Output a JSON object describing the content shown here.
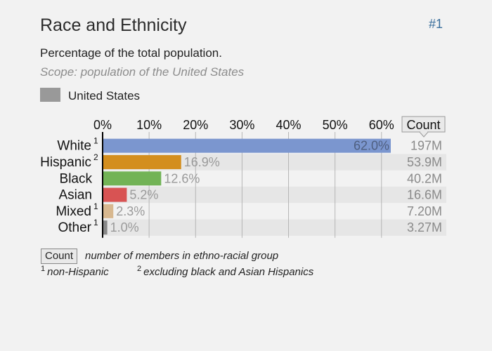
{
  "header": {
    "title": "Race and Ethnicity",
    "rank": "#1",
    "subtitle": "Percentage of the total population.",
    "scope": "Scope: population of the United States"
  },
  "legend": {
    "label": "United States",
    "color": "#999999"
  },
  "chart_data": {
    "type": "bar",
    "orientation": "horizontal",
    "xlim": [
      0,
      62
    ],
    "ticks": [
      {
        "value": 0,
        "label": "0%"
      },
      {
        "value": 10,
        "label": "10%"
      },
      {
        "value": 20,
        "label": "20%"
      },
      {
        "value": 30,
        "label": "30%"
      },
      {
        "value": 40,
        "label": "40%"
      },
      {
        "value": 50,
        "label": "50%"
      },
      {
        "value": 60,
        "label": "60%"
      }
    ],
    "count_header": "Count",
    "categories": [
      {
        "name": "White",
        "sup": "1",
        "value": 62.0,
        "label": "62.0%",
        "count": "197M",
        "color": "#7b96cf"
      },
      {
        "name": "Hispanic",
        "sup": "2",
        "value": 16.9,
        "label": "16.9%",
        "count": "53.9M",
        "color": "#d38e1e"
      },
      {
        "name": "Black",
        "sup": "",
        "value": 12.6,
        "label": "12.6%",
        "count": "40.2M",
        "color": "#72b356"
      },
      {
        "name": "Asian",
        "sup": "",
        "value": 5.2,
        "label": "5.2%",
        "count": "16.6M",
        "color": "#d85353"
      },
      {
        "name": "Mixed",
        "sup": "1",
        "value": 2.3,
        "label": "2.3%",
        "count": "7.20M",
        "color": "#d8b88f"
      },
      {
        "name": "Other",
        "sup": "1",
        "value": 1.0,
        "label": "1.0%",
        "count": "3.27M",
        "color": "#888888"
      }
    ]
  },
  "footer": {
    "count_label": "Count",
    "count_note": "number of members in ethno-racial group",
    "footnote1_sup": "1",
    "footnote1": "non-Hispanic",
    "footnote2_sup": "2",
    "footnote2": "excluding black and Asian Hispanics"
  }
}
